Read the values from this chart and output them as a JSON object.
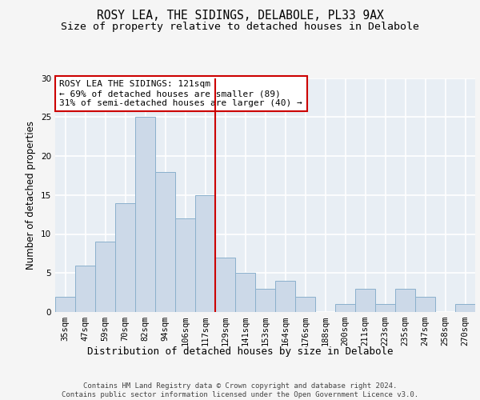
{
  "title": "ROSY LEA, THE SIDINGS, DELABOLE, PL33 9AX",
  "subtitle": "Size of property relative to detached houses in Delabole",
  "xlabel": "Distribution of detached houses by size in Delabole",
  "ylabel": "Number of detached properties",
  "bar_labels": [
    "35sqm",
    "47sqm",
    "59sqm",
    "70sqm",
    "82sqm",
    "94sqm",
    "106sqm",
    "117sqm",
    "129sqm",
    "141sqm",
    "153sqm",
    "164sqm",
    "176sqm",
    "188sqm",
    "200sqm",
    "211sqm",
    "223sqm",
    "235sqm",
    "247sqm",
    "258sqm",
    "270sqm"
  ],
  "bar_values": [
    2,
    6,
    9,
    14,
    25,
    18,
    12,
    15,
    7,
    5,
    3,
    4,
    2,
    0,
    1,
    3,
    1,
    3,
    2,
    0,
    1
  ],
  "bar_color": "#ccd9e8",
  "bar_edgecolor": "#8ab0cc",
  "vline_x": 7.5,
  "vline_color": "#cc0000",
  "annotation_text": "ROSY LEA THE SIDINGS: 121sqm\n← 69% of detached houses are smaller (89)\n31% of semi-detached houses are larger (40) →",
  "annotation_box_color": "#ffffff",
  "annotation_box_edgecolor": "#cc0000",
  "ylim": [
    0,
    30
  ],
  "yticks": [
    0,
    5,
    10,
    15,
    20,
    25,
    30
  ],
  "footer_text": "Contains HM Land Registry data © Crown copyright and database right 2024.\nContains public sector information licensed under the Open Government Licence v3.0.",
  "bg_color": "#e8eef4",
  "grid_color": "#ffffff",
  "fig_bg_color": "#f5f5f5",
  "title_fontsize": 10.5,
  "subtitle_fontsize": 9.5,
  "xlabel_fontsize": 9,
  "ylabel_fontsize": 8.5,
  "tick_fontsize": 7.5,
  "annotation_fontsize": 8,
  "footer_fontsize": 6.5
}
